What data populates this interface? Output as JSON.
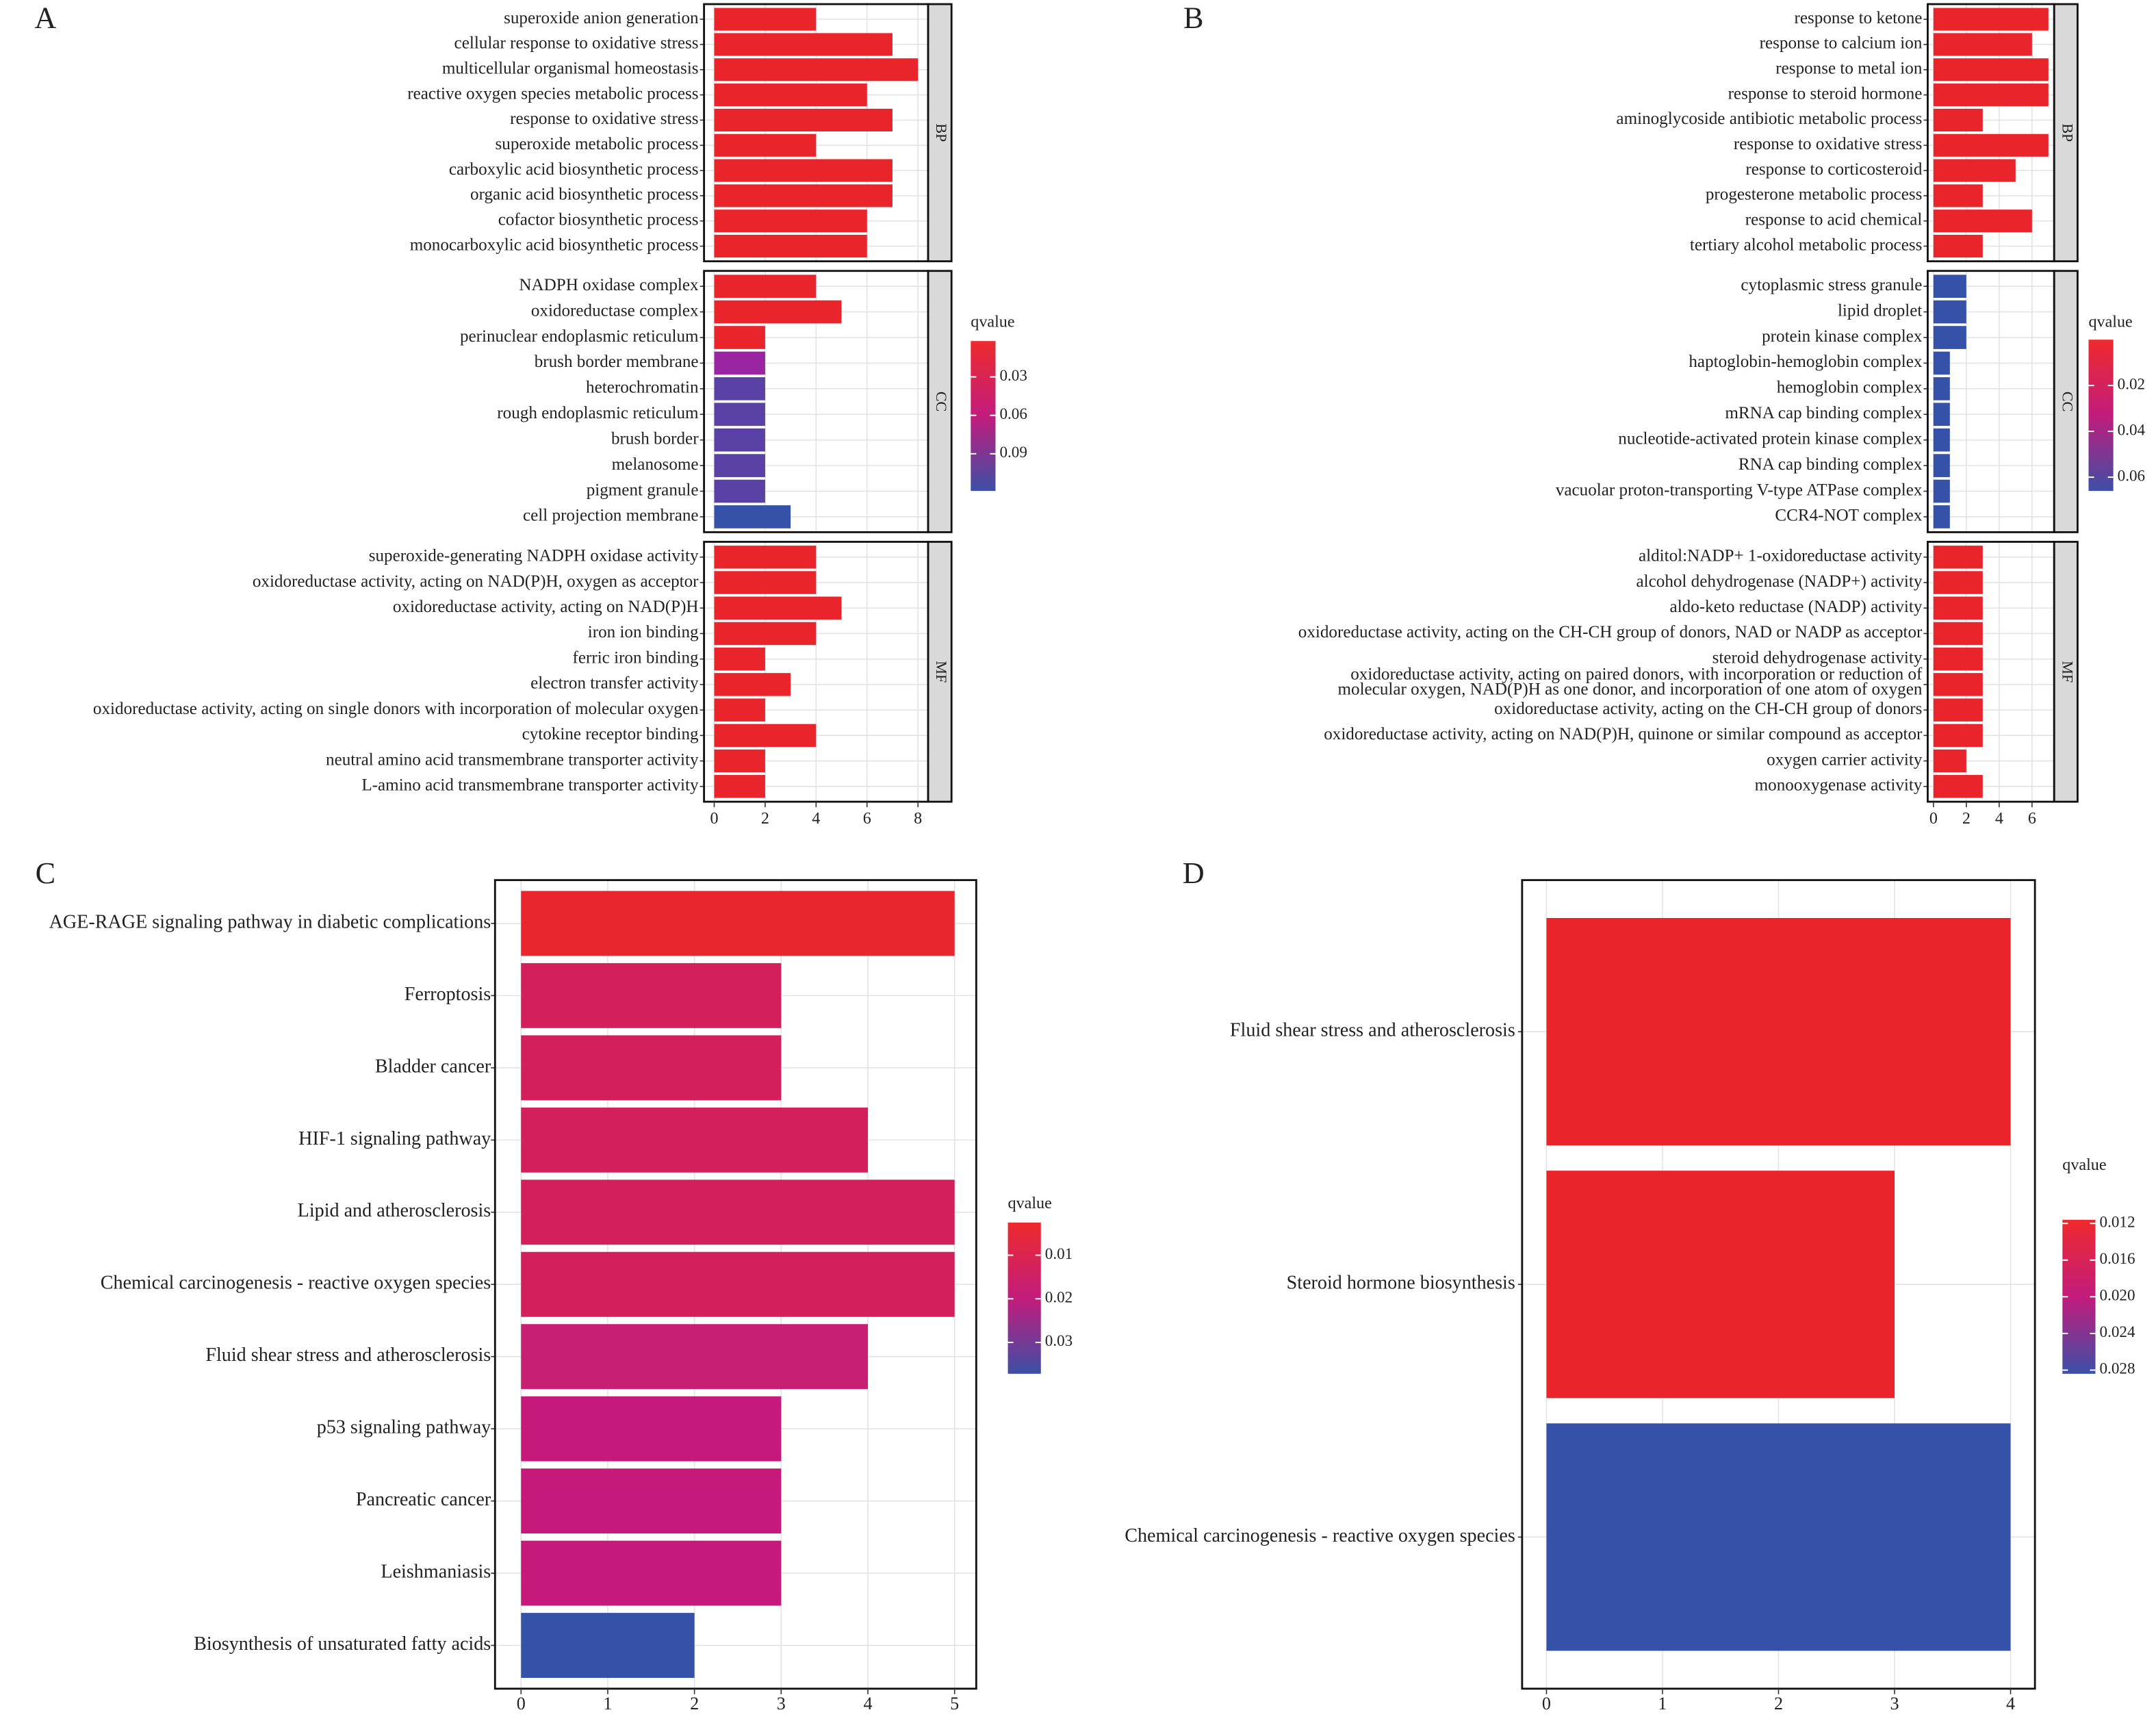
{
  "chart_data": [
    {
      "type": "bar",
      "panel": "A",
      "xlim": [
        -0.4,
        8.4
      ],
      "xticks": [
        0,
        2,
        4,
        6,
        8
      ],
      "grid": true,
      "legend_title": "qvalue",
      "colorbar": {
        "colors": [
          "#ee2a2d",
          "#c21c7c",
          "#3c4fa6"
        ],
        "lim": [
          0.002,
          0.119
        ],
        "ticks": [
          0.03,
          0.06,
          0.09
        ]
      },
      "facets": [
        {
          "name": "BP",
          "categories": [
            "superoxide anion generation",
            "cellular response to oxidative stress",
            "multicellular organismal homeostasis",
            "reactive oxygen species metabolic process",
            "response to oxidative stress",
            "superoxide metabolic process",
            "carboxylic acid biosynthetic process",
            "organic acid biosynthetic process",
            "cofactor biosynthetic process",
            "monocarboxylic acid biosynthetic process"
          ],
          "values": [
            4,
            7,
            8,
            6,
            7,
            4,
            7,
            7,
            6,
            6
          ],
          "colors": [
            "#e9242b",
            "#e9242b",
            "#e9242b",
            "#e9242b",
            "#e9242b",
            "#e9242b",
            "#e9242b",
            "#e9242b",
            "#e9242b",
            "#e9242b"
          ]
        },
        {
          "name": "CC",
          "categories": [
            "NADPH oxidase complex",
            "oxidoreductase complex",
            "perinuclear endoplasmic reticulum",
            "brush border membrane",
            "heterochromatin",
            "rough endoplasmic reticulum",
            "brush border",
            "melanosome",
            "pigment granule",
            "cell projection membrane"
          ],
          "values": [
            4,
            5,
            2,
            2,
            2,
            2,
            2,
            2,
            2,
            3
          ],
          "colors": [
            "#e9242b",
            "#e9242b",
            "#e9242b",
            "#9a25a0",
            "#5a41a6",
            "#5a41a6",
            "#5a41a6",
            "#5a41a6",
            "#5a41a6",
            "#3552a8"
          ]
        },
        {
          "name": "MF",
          "categories": [
            "superoxide-generating NADPH oxidase activity",
            "oxidoreductase activity, acting on NAD(P)H, oxygen as acceptor",
            "oxidoreductase activity, acting on NAD(P)H",
            "iron ion binding",
            "ferric iron binding",
            "electron transfer activity",
            "oxidoreductase activity, acting on single donors with incorporation of molecular oxygen",
            "cytokine receptor binding",
            "neutral amino acid transmembrane transporter activity",
            "L-amino acid transmembrane transporter activity"
          ],
          "values": [
            4,
            4,
            5,
            4,
            2,
            3,
            2,
            4,
            2,
            2
          ],
          "colors": [
            "#e9242b",
            "#e9242b",
            "#e9242b",
            "#e9242b",
            "#e9242b",
            "#e9242b",
            "#e9242b",
            "#e9242b",
            "#e9242b",
            "#e9242b"
          ]
        }
      ]
    },
    {
      "type": "bar",
      "panel": "B",
      "xlim": [
        -0.35,
        7.35
      ],
      "xticks": [
        0,
        2,
        4,
        6
      ],
      "grid": true,
      "legend_title": "qvalue",
      "colorbar": {
        "colors": [
          "#ee2a2d",
          "#c21c7c",
          "#3c4fa6"
        ],
        "lim": [
          0.0,
          0.066
        ],
        "ticks": [
          0.02,
          0.04,
          0.06
        ]
      },
      "facets": [
        {
          "name": "BP",
          "categories": [
            "response to ketone",
            "response to calcium ion",
            "response to metal ion",
            "response to steroid hormone",
            "aminoglycoside antibiotic metabolic process",
            "response to oxidative stress",
            "response to corticosteroid",
            "progesterone metabolic process",
            "response to acid chemical",
            "tertiary alcohol metabolic process"
          ],
          "values": [
            7,
            6,
            7,
            7,
            3,
            7,
            5,
            3,
            6,
            3
          ],
          "colors": [
            "#e9242b",
            "#e9242b",
            "#e9242b",
            "#e9242b",
            "#e9242b",
            "#e9242b",
            "#e9242b",
            "#e9242b",
            "#e9242b",
            "#e9242b"
          ]
        },
        {
          "name": "CC",
          "categories": [
            "cytoplasmic stress granule",
            "lipid droplet",
            "protein kinase complex",
            "haptoglobin-hemoglobin complex",
            "hemoglobin complex",
            "mRNA cap binding complex",
            "nucleotide-activated protein kinase complex",
            "RNA cap binding complex",
            "vacuolar proton-transporting V-type ATPase complex",
            "CCR4-NOT complex"
          ],
          "values": [
            2,
            2,
            2,
            1,
            1,
            1,
            1,
            1,
            1,
            1
          ],
          "colors": [
            "#3552a8",
            "#3552a8",
            "#3552a8",
            "#3552a8",
            "#3552a8",
            "#3552a8",
            "#3552a8",
            "#3552a8",
            "#3552a8",
            "#3552a8"
          ]
        },
        {
          "name": "MF",
          "categories": [
            "alditol:NADP+ 1-oxidoreductase activity",
            "alcohol dehydrogenase (NADP+) activity",
            "aldo-keto reductase (NADP) activity",
            "oxidoreductase activity, acting on the CH-CH group of donors, NAD or NADP as acceptor",
            "steroid dehydrogenase activity",
            "oxidoreductase activity, acting on paired donors, with incorporation or reduction of\nmolecular oxygen, NAD(P)H as one donor, and incorporation of one atom of oxygen",
            "oxidoreductase activity, acting on the CH-CH group of donors",
            "oxidoreductase activity, acting on NAD(P)H, quinone or similar compound as acceptor",
            "oxygen carrier activity",
            "monooxygenase activity"
          ],
          "values": [
            3,
            3,
            3,
            3,
            3,
            3,
            3,
            3,
            2,
            3
          ],
          "colors": [
            "#e9242b",
            "#e9242b",
            "#e9242b",
            "#e9242b",
            "#e9242b",
            "#e9242b",
            "#e9242b",
            "#e9242b",
            "#e9242b",
            "#e9242b"
          ]
        }
      ]
    },
    {
      "type": "bar",
      "panel": "C",
      "xlim": [
        -0.3,
        5.25
      ],
      "xticks": [
        0,
        1,
        2,
        3,
        4,
        5
      ],
      "grid": true,
      "legend_title": "qvalue",
      "colorbar": {
        "colors": [
          "#ee2a2d",
          "#c21c7c",
          "#3c4fa6"
        ],
        "lim": [
          0.0025,
          0.0372
        ],
        "ticks": [
          0.01,
          0.02,
          0.03
        ]
      },
      "categories": [
        "AGE-RAGE signaling pathway in diabetic complications",
        "Ferroptosis",
        "Bladder cancer",
        "HIF-1 signaling pathway",
        "Lipid and atherosclerosis",
        "Chemical carcinogenesis - reactive oxygen species",
        "Fluid shear stress and atherosclerosis",
        "p53 signaling pathway",
        "Pancreatic cancer",
        "Leishmaniasis",
        "Biosynthesis of unsaturated fatty acids"
      ],
      "values": [
        5,
        3,
        3,
        4,
        5,
        5,
        4,
        3,
        3,
        3,
        2
      ],
      "colors": [
        "#e9252e",
        "#d31f5b",
        "#d31f5b",
        "#d31f5b",
        "#d31f5b",
        "#d31f5b",
        "#c61f73",
        "#c5197b",
        "#c5197b",
        "#c5197b",
        "#3552a8"
      ]
    },
    {
      "type": "bar",
      "panel": "D",
      "xlim": [
        -0.21,
        4.21
      ],
      "xticks": [
        0,
        1,
        2,
        3,
        4
      ],
      "grid": true,
      "legend_title": "qvalue",
      "colorbar": {
        "colors": [
          "#ee2a2d",
          "#c21c7c",
          "#3c4fa6"
        ],
        "lim": [
          0.0116,
          0.0284
        ],
        "ticks": [
          0.012,
          0.016,
          {
            "value": 0.02,
            "label": "0.020"
          },
          0.024,
          0.028
        ]
      },
      "categories": [
        "Fluid shear stress and atherosclerosis",
        "Steroid hormone biosynthesis",
        "Chemical carcinogenesis - reactive oxygen species"
      ],
      "values": [
        4,
        3,
        4
      ],
      "colors": [
        "#e9242b",
        "#e9242b",
        "#3552a8"
      ]
    }
  ]
}
